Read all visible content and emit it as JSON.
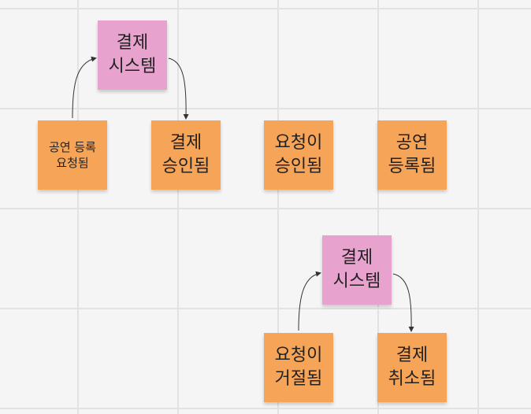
{
  "board": {
    "stickies": [
      {
        "id": "payment-system-top",
        "text": "결제\n시스템",
        "color": "#e7a2ce"
      },
      {
        "id": "concert-registration-requested",
        "text": "공연 등록\n요청됨",
        "color": "#f6a457"
      },
      {
        "id": "payment-approved",
        "text": "결제\n승인됨",
        "color": "#f6a457"
      },
      {
        "id": "request-approved",
        "text": "요청이\n승인됨",
        "color": "#f6a457"
      },
      {
        "id": "concert-registered",
        "text": "공연\n등록됨",
        "color": "#f6a457"
      },
      {
        "id": "payment-system-bottom",
        "text": "결제\n시스템",
        "color": "#e7a2ce"
      },
      {
        "id": "request-rejected",
        "text": "요청이\n거절됨",
        "color": "#f6a457"
      },
      {
        "id": "payment-cancelled",
        "text": "결제\n취소됨",
        "color": "#f6a457"
      }
    ],
    "colors": {
      "grid": "#e2e2e2",
      "background": "#f5f5f5",
      "connector": "#333333"
    }
  }
}
